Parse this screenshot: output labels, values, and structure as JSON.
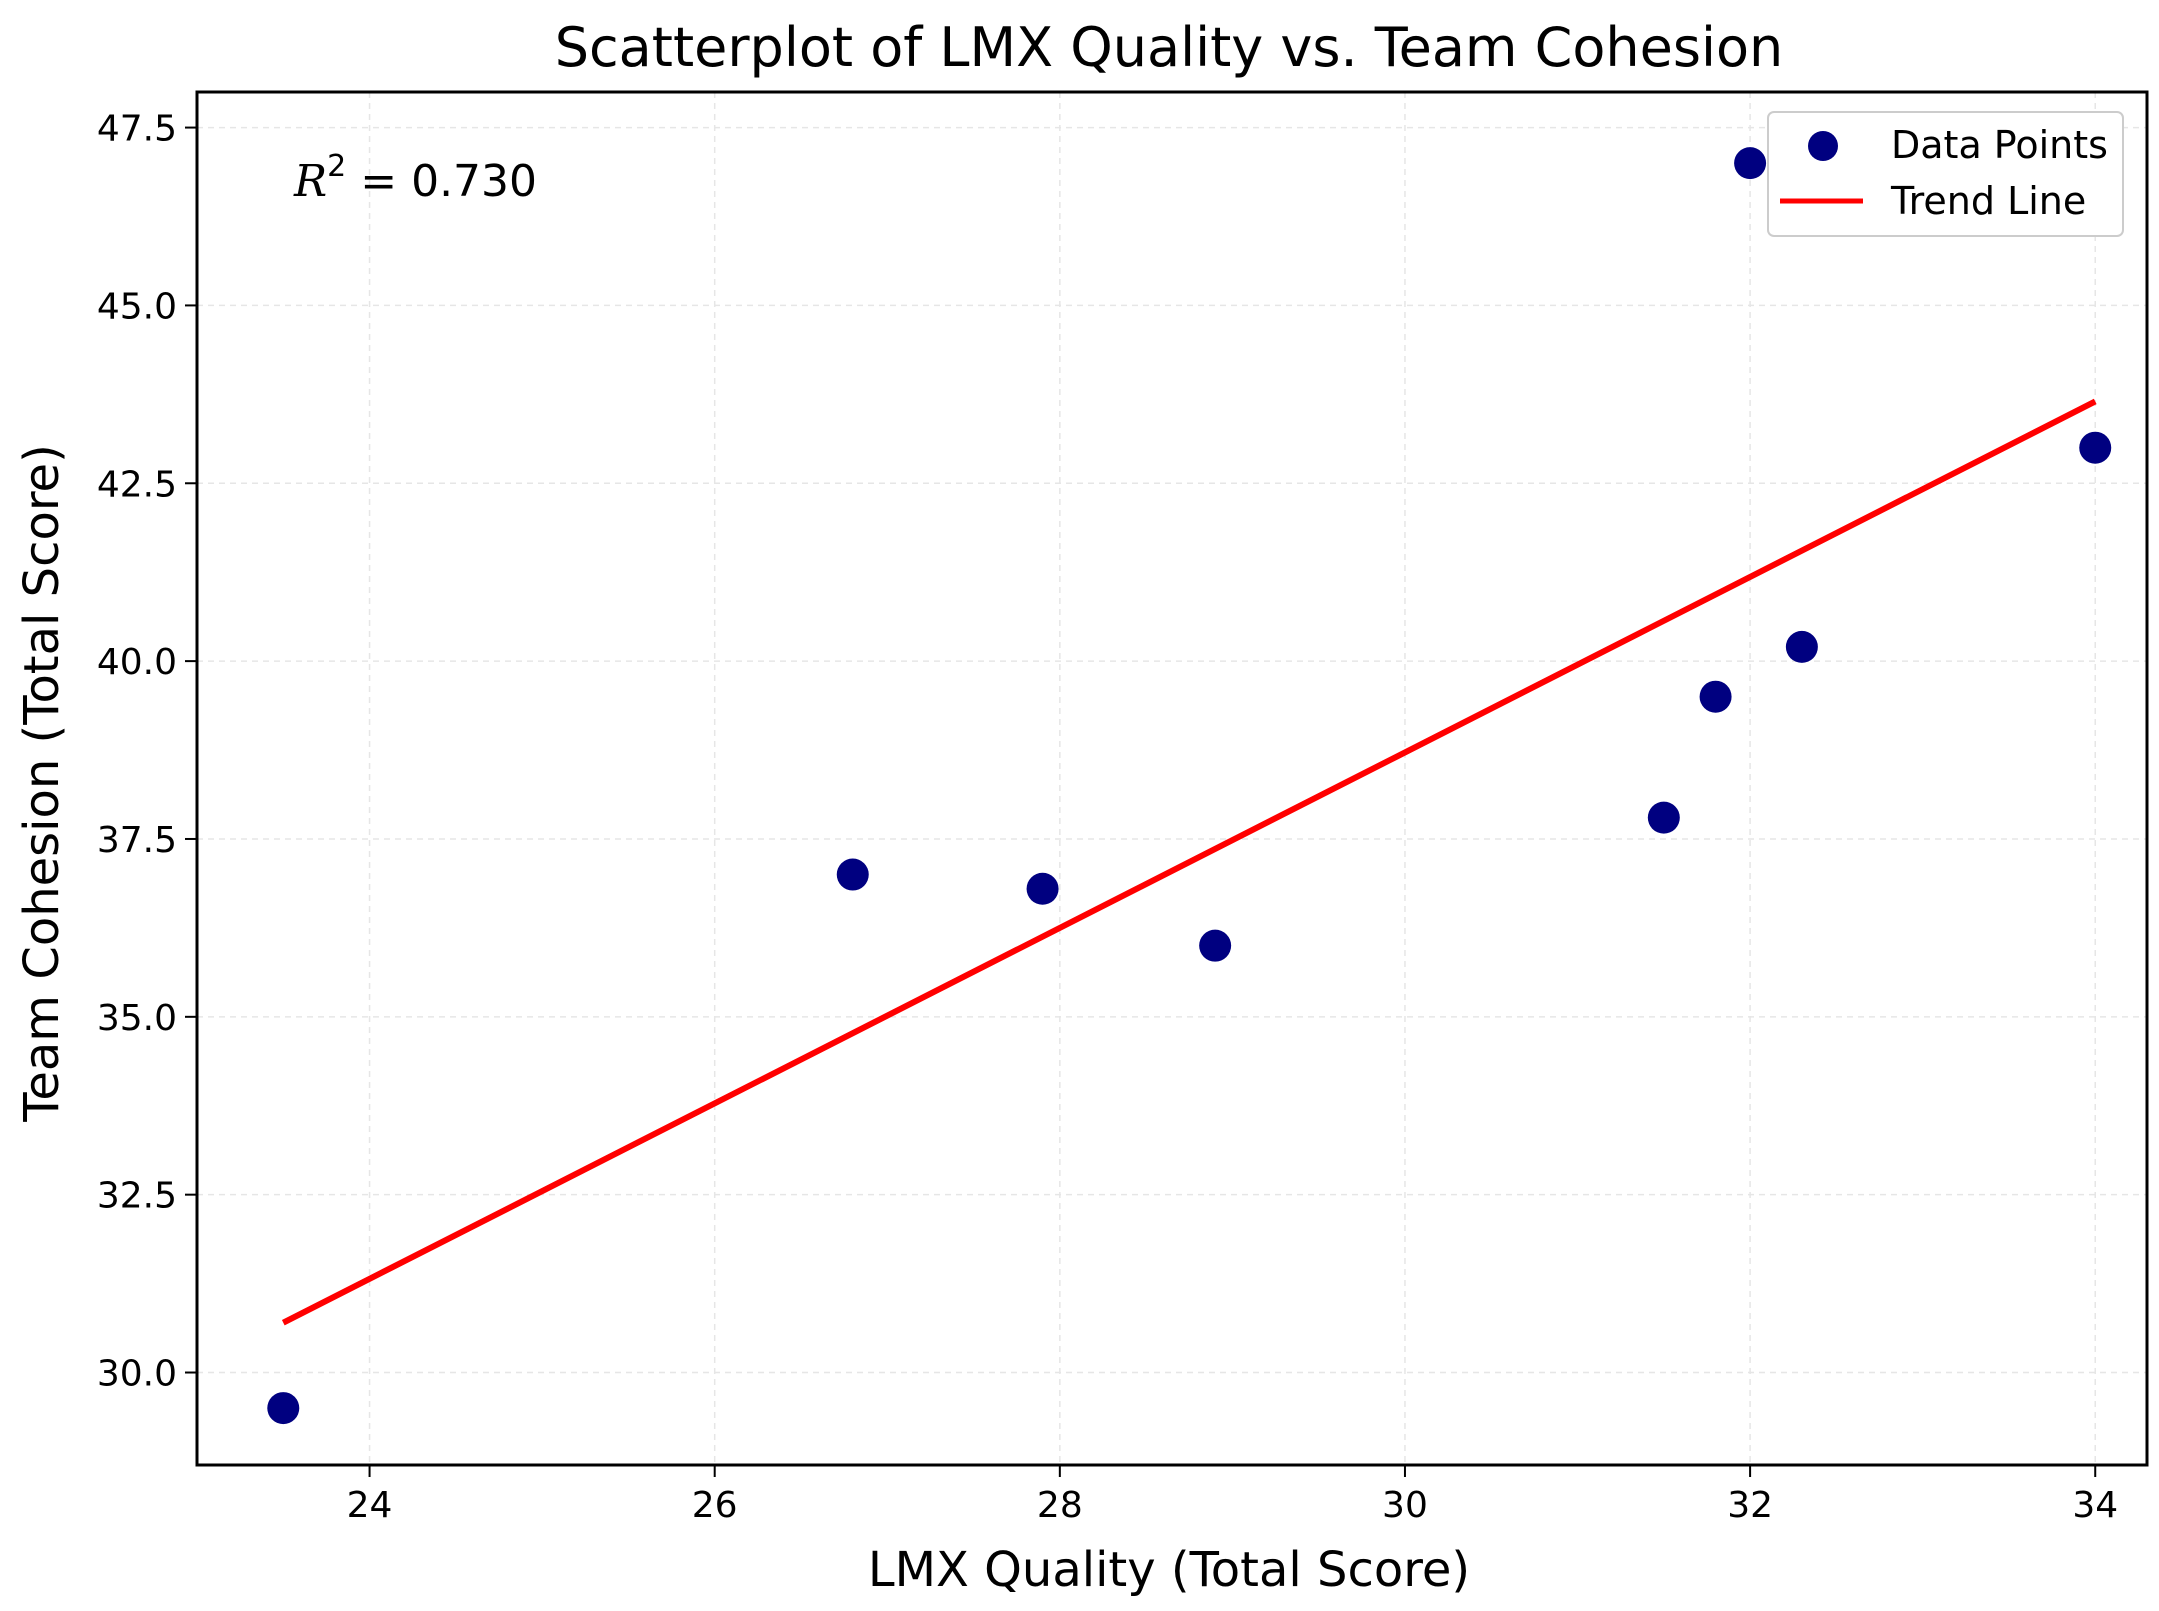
{
  "chart_data": {
    "type": "scatter",
    "title": "Scatterplot of LMX Quality vs. Team Cohesion",
    "xlabel": "LMX Quality (Total Score)",
    "ylabel": "Team Cohesion (Total Score)",
    "xlim": [
      23,
      34.3
    ],
    "ylim": [
      28.7,
      48.0
    ],
    "x_ticks": [
      24,
      26,
      28,
      30,
      32,
      34
    ],
    "y_ticks": [
      30.0,
      32.5,
      35.0,
      37.5,
      40.0,
      42.5,
      45.0,
      47.5
    ],
    "grid": true,
    "legend_position": "top-right",
    "series": [
      {
        "name": "Data Points",
        "type": "scatter",
        "color": "#000080",
        "x": [
          23.5,
          26.8,
          27.9,
          28.9,
          31.5,
          31.8,
          32.0,
          32.3,
          34.0
        ],
        "y": [
          29.5,
          37.0,
          36.8,
          36.0,
          37.8,
          39.5,
          47.0,
          40.2,
          43.0
        ]
      },
      {
        "name": "Trend Line",
        "type": "line",
        "color": "#ff0000",
        "x": [
          23.5,
          34.0
        ],
        "y": [
          30.7,
          43.65
        ]
      }
    ],
    "annotation": {
      "symbol": "R",
      "exponent": "2",
      "equals": " = ",
      "value": "0.730"
    }
  }
}
